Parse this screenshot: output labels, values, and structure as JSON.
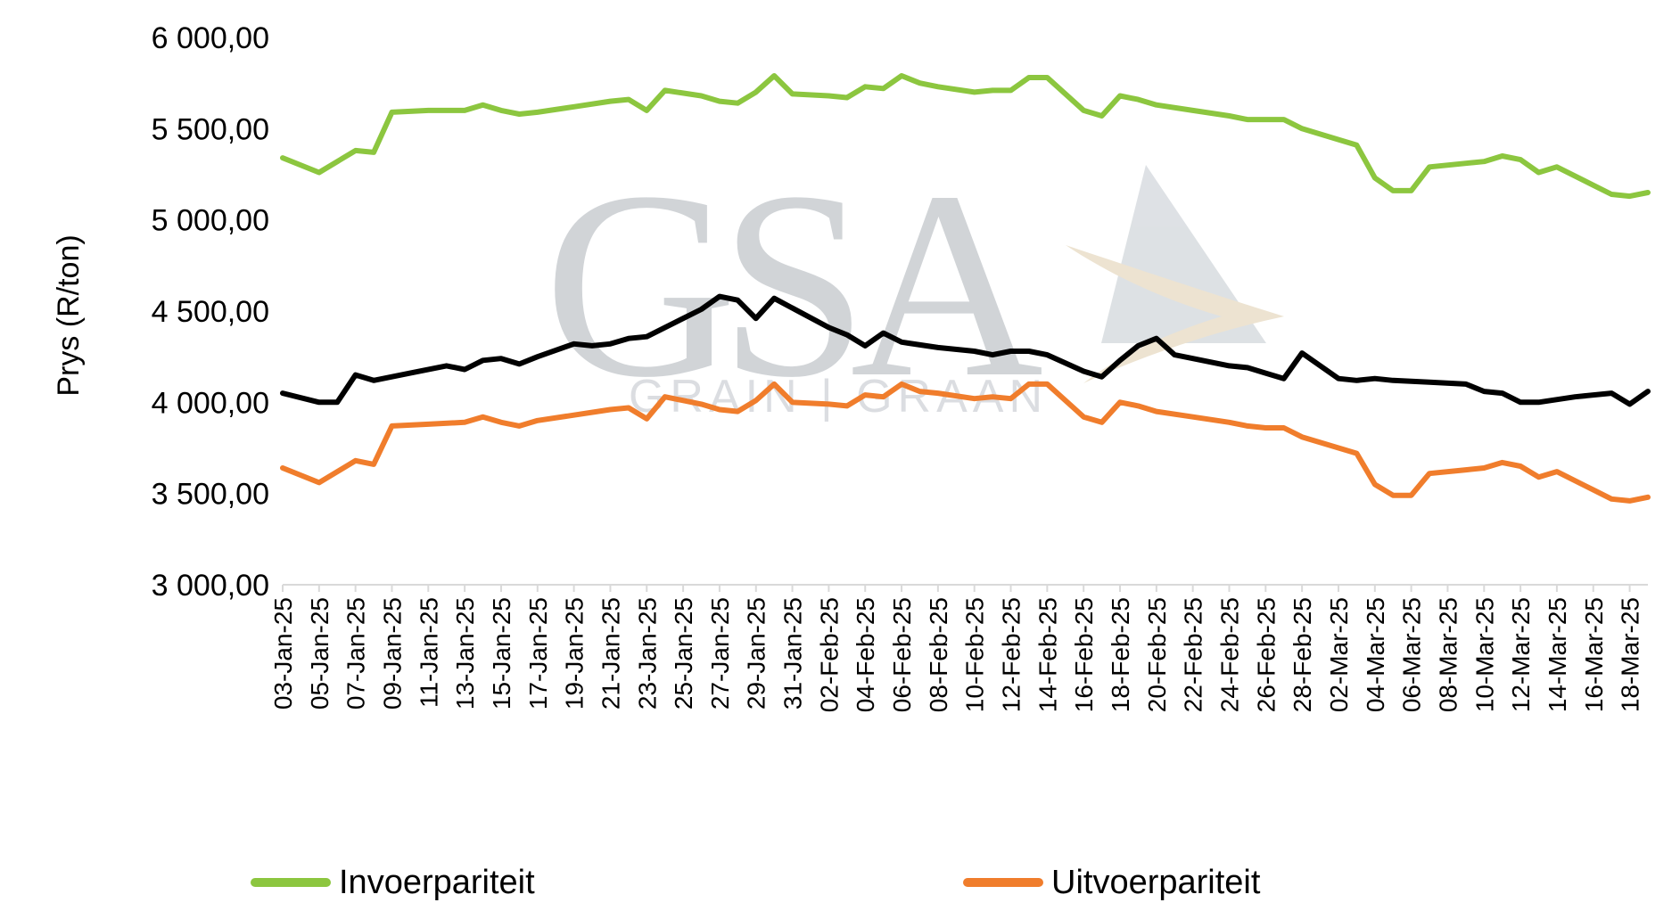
{
  "chart_data": {
    "type": "line",
    "title": "",
    "xlabel": "",
    "ylabel": "Prys (R/ton)",
    "ylim": [
      3000,
      6000
    ],
    "y_ticks": [
      "6 000,00",
      "5 500,00",
      "5 000,00",
      "4 500,00",
      "4 000,00",
      "3 500,00",
      "3 000,00"
    ],
    "y_tick_values": [
      6000,
      5500,
      5000,
      4500,
      4000,
      3500,
      3000
    ],
    "x_tick_labels": [
      "03-Jan-25",
      "05-Jan-25",
      "07-Jan-25",
      "09-Jan-25",
      "11-Jan-25",
      "13-Jan-25",
      "15-Jan-25",
      "17-Jan-25",
      "19-Jan-25",
      "21-Jan-25",
      "23-Jan-25",
      "25-Jan-25",
      "27-Jan-25",
      "29-Jan-25",
      "31-Jan-25",
      "02-Feb-25",
      "04-Feb-25",
      "06-Feb-25",
      "08-Feb-25",
      "10-Feb-25",
      "12-Feb-25",
      "14-Feb-25",
      "16-Feb-25",
      "18-Feb-25",
      "20-Feb-25",
      "22-Feb-25",
      "24-Feb-25",
      "26-Feb-25",
      "28-Feb-25",
      "02-Mar-25",
      "04-Mar-25",
      "06-Mar-25",
      "08-Mar-25",
      "10-Mar-25",
      "12-Mar-25",
      "14-Mar-25",
      "16-Mar-25",
      "18-Mar-25"
    ],
    "grid": false,
    "legend_position": "bottom",
    "series": [
      {
        "name": "Invoerpariteit",
        "color": "#8cc63f",
        "points": [
          [
            "03-Jan-25",
            5340
          ],
          [
            "05-Jan-25",
            5260
          ],
          [
            "07-Jan-25",
            5380
          ],
          [
            "08-Jan-25",
            5370
          ],
          [
            "09-Jan-25",
            5590
          ],
          [
            "11-Jan-25",
            5600
          ],
          [
            "13-Jan-25",
            5600
          ],
          [
            "14-Jan-25",
            5630
          ],
          [
            "15-Jan-25",
            5600
          ],
          [
            "16-Jan-25",
            5580
          ],
          [
            "17-Jan-25",
            5590
          ],
          [
            "19-Jan-25",
            5620
          ],
          [
            "21-Jan-25",
            5650
          ],
          [
            "22-Jan-25",
            5660
          ],
          [
            "23-Jan-25",
            5600
          ],
          [
            "24-Jan-25",
            5710
          ],
          [
            "26-Jan-25",
            5680
          ],
          [
            "27-Jan-25",
            5650
          ],
          [
            "28-Jan-25",
            5640
          ],
          [
            "29-Jan-25",
            5700
          ],
          [
            "30-Jan-25",
            5790
          ],
          [
            "31-Jan-25",
            5690
          ],
          [
            "02-Feb-25",
            5680
          ],
          [
            "03-Feb-25",
            5670
          ],
          [
            "04-Feb-25",
            5730
          ],
          [
            "05-Feb-25",
            5720
          ],
          [
            "06-Feb-25",
            5790
          ],
          [
            "07-Feb-25",
            5750
          ],
          [
            "08-Feb-25",
            5730
          ],
          [
            "10-Feb-25",
            5700
          ],
          [
            "11-Feb-25",
            5710
          ],
          [
            "12-Feb-25",
            5710
          ],
          [
            "13-Feb-25",
            5780
          ],
          [
            "14-Feb-25",
            5780
          ],
          [
            "16-Feb-25",
            5600
          ],
          [
            "17-Feb-25",
            5570
          ],
          [
            "18-Feb-25",
            5680
          ],
          [
            "19-Feb-25",
            5660
          ],
          [
            "20-Feb-25",
            5630
          ],
          [
            "22-Feb-25",
            5600
          ],
          [
            "24-Feb-25",
            5570
          ],
          [
            "25-Feb-25",
            5550
          ],
          [
            "26-Feb-25",
            5550
          ],
          [
            "27-Feb-25",
            5550
          ],
          [
            "28-Feb-25",
            5500
          ],
          [
            "02-Mar-25",
            5440
          ],
          [
            "03-Mar-25",
            5410
          ],
          [
            "04-Mar-25",
            5230
          ],
          [
            "05-Mar-25",
            5160
          ],
          [
            "06-Mar-25",
            5160
          ],
          [
            "07-Mar-25",
            5290
          ],
          [
            "09-Mar-25",
            5310
          ],
          [
            "10-Mar-25",
            5320
          ],
          [
            "11-Mar-25",
            5350
          ],
          [
            "12-Mar-25",
            5330
          ],
          [
            "13-Mar-25",
            5260
          ],
          [
            "14-Mar-25",
            5290
          ],
          [
            "16-Mar-25",
            5190
          ],
          [
            "17-Mar-25",
            5140
          ],
          [
            "18-Mar-25",
            5130
          ],
          [
            "19-Mar-25",
            5150
          ]
        ]
      },
      {
        "name": "Uitvoerpariteit",
        "color": "#f07d2c",
        "points": [
          [
            "03-Jan-25",
            3640
          ],
          [
            "05-Jan-25",
            3560
          ],
          [
            "07-Jan-25",
            3680
          ],
          [
            "08-Jan-25",
            3660
          ],
          [
            "09-Jan-25",
            3870
          ],
          [
            "11-Jan-25",
            3880
          ],
          [
            "13-Jan-25",
            3890
          ],
          [
            "14-Jan-25",
            3920
          ],
          [
            "15-Jan-25",
            3890
          ],
          [
            "16-Jan-25",
            3870
          ],
          [
            "17-Jan-25",
            3900
          ],
          [
            "19-Jan-25",
            3930
          ],
          [
            "21-Jan-25",
            3960
          ],
          [
            "22-Jan-25",
            3970
          ],
          [
            "23-Jan-25",
            3910
          ],
          [
            "24-Jan-25",
            4030
          ],
          [
            "26-Jan-25",
            3990
          ],
          [
            "27-Jan-25",
            3960
          ],
          [
            "28-Jan-25",
            3950
          ],
          [
            "29-Jan-25",
            4010
          ],
          [
            "30-Jan-25",
            4100
          ],
          [
            "31-Jan-25",
            4000
          ],
          [
            "02-Feb-25",
            3990
          ],
          [
            "03-Feb-25",
            3980
          ],
          [
            "04-Feb-25",
            4040
          ],
          [
            "05-Feb-25",
            4030
          ],
          [
            "06-Feb-25",
            4100
          ],
          [
            "07-Feb-25",
            4060
          ],
          [
            "08-Feb-25",
            4050
          ],
          [
            "10-Feb-25",
            4020
          ],
          [
            "11-Feb-25",
            4030
          ],
          [
            "12-Feb-25",
            4020
          ],
          [
            "13-Feb-25",
            4100
          ],
          [
            "14-Feb-25",
            4100
          ],
          [
            "16-Feb-25",
            3920
          ],
          [
            "17-Feb-25",
            3890
          ],
          [
            "18-Feb-25",
            4000
          ],
          [
            "19-Feb-25",
            3980
          ],
          [
            "20-Feb-25",
            3950
          ],
          [
            "22-Feb-25",
            3920
          ],
          [
            "24-Feb-25",
            3890
          ],
          [
            "25-Feb-25",
            3870
          ],
          [
            "26-Feb-25",
            3860
          ],
          [
            "27-Feb-25",
            3860
          ],
          [
            "28-Feb-25",
            3810
          ],
          [
            "02-Mar-25",
            3750
          ],
          [
            "03-Mar-25",
            3720
          ],
          [
            "04-Mar-25",
            3550
          ],
          [
            "05-Mar-25",
            3490
          ],
          [
            "06-Mar-25",
            3490
          ],
          [
            "07-Mar-25",
            3610
          ],
          [
            "09-Mar-25",
            3630
          ],
          [
            "10-Mar-25",
            3640
          ],
          [
            "11-Mar-25",
            3670
          ],
          [
            "12-Mar-25",
            3650
          ],
          [
            "13-Mar-25",
            3590
          ],
          [
            "14-Mar-25",
            3620
          ],
          [
            "16-Mar-25",
            3520
          ],
          [
            "17-Mar-25",
            3470
          ],
          [
            "18-Mar-25",
            3460
          ],
          [
            "19-Mar-25",
            3480
          ]
        ]
      },
      {
        "color": "#000000",
        "points": [
          [
            "03-Jan-25",
            4050
          ],
          [
            "05-Jan-25",
            4000
          ],
          [
            "06-Jan-25",
            4000
          ],
          [
            "07-Jan-25",
            4150
          ],
          [
            "08-Jan-25",
            4120
          ],
          [
            "10-Jan-25",
            4160
          ],
          [
            "12-Jan-25",
            4200
          ],
          [
            "13-Jan-25",
            4180
          ],
          [
            "14-Jan-25",
            4230
          ],
          [
            "15-Jan-25",
            4240
          ],
          [
            "16-Jan-25",
            4210
          ],
          [
            "17-Jan-25",
            4250
          ],
          [
            "19-Jan-25",
            4320
          ],
          [
            "20-Jan-25",
            4310
          ],
          [
            "21-Jan-25",
            4320
          ],
          [
            "22-Jan-25",
            4350
          ],
          [
            "23-Jan-25",
            4360
          ],
          [
            "24-Jan-25",
            4410
          ],
          [
            "26-Jan-25",
            4510
          ],
          [
            "27-Jan-25",
            4580
          ],
          [
            "28-Jan-25",
            4560
          ],
          [
            "29-Jan-25",
            4460
          ],
          [
            "30-Jan-25",
            4570
          ],
          [
            "02-Feb-25",
            4410
          ],
          [
            "03-Feb-25",
            4370
          ],
          [
            "04-Feb-25",
            4310
          ],
          [
            "05-Feb-25",
            4380
          ],
          [
            "06-Feb-25",
            4330
          ],
          [
            "08-Feb-25",
            4300
          ],
          [
            "10-Feb-25",
            4280
          ],
          [
            "11-Feb-25",
            4260
          ],
          [
            "12-Feb-25",
            4280
          ],
          [
            "13-Feb-25",
            4280
          ],
          [
            "14-Feb-25",
            4260
          ],
          [
            "16-Feb-25",
            4170
          ],
          [
            "17-Feb-25",
            4140
          ],
          [
            "18-Feb-25",
            4230
          ],
          [
            "19-Feb-25",
            4310
          ],
          [
            "20-Feb-25",
            4350
          ],
          [
            "21-Feb-25",
            4260
          ],
          [
            "23-Feb-25",
            4220
          ],
          [
            "24-Feb-25",
            4200
          ],
          [
            "25-Feb-25",
            4190
          ],
          [
            "26-Feb-25",
            4160
          ],
          [
            "27-Feb-25",
            4130
          ],
          [
            "28-Feb-25",
            4270
          ],
          [
            "02-Mar-25",
            4130
          ],
          [
            "03-Mar-25",
            4120
          ],
          [
            "04-Mar-25",
            4130
          ],
          [
            "05-Mar-25",
            4120
          ],
          [
            "07-Mar-25",
            4110
          ],
          [
            "09-Mar-25",
            4100
          ],
          [
            "10-Mar-25",
            4060
          ],
          [
            "11-Mar-25",
            4050
          ],
          [
            "12-Mar-25",
            4000
          ],
          [
            "13-Mar-25",
            4000
          ],
          [
            "15-Mar-25",
            4030
          ],
          [
            "17-Mar-25",
            4050
          ],
          [
            "18-Mar-25",
            3990
          ],
          [
            "19-Mar-25",
            4060
          ]
        ]
      }
    ]
  },
  "watermark": {
    "logo": "GSA",
    "subtitle": "GRAIN | GRAAN",
    "color": "#c9cdd1"
  }
}
